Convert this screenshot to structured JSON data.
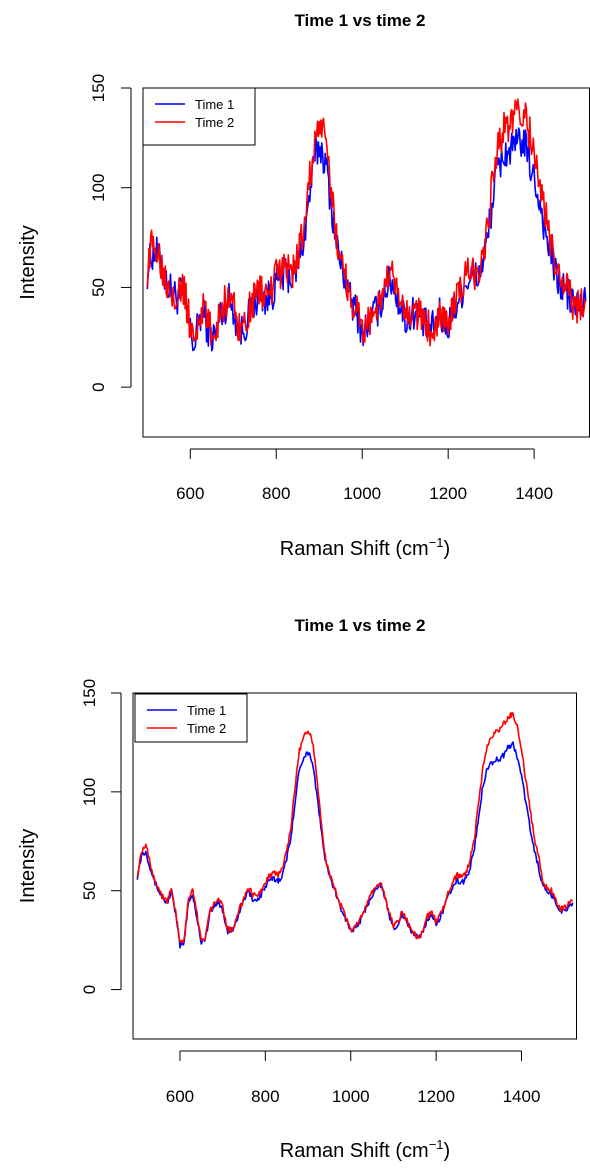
{
  "chart_data": [
    {
      "type": "line",
      "title": "Time 1 vs time 2",
      "xlabel": "Raman Shift (cm",
      "xlabel_sup": "−1",
      "xlabel_tail": ")",
      "ylabel": "Intensity",
      "xlim": [
        490,
        1530
      ],
      "ylim": [
        -25,
        150
      ],
      "xticks": [
        "600",
        "800",
        "1000",
        "1200",
        "1400"
      ],
      "yticks": [
        "0",
        "50",
        "100",
        "150"
      ],
      "legend_position": "top-left",
      "grid": false,
      "series": [
        {
          "name": "Time 1",
          "color": "#0000ff",
          "noise": 9,
          "x": [
            500,
            510,
            520,
            530,
            540,
            550,
            560,
            570,
            580,
            590,
            600,
            610,
            620,
            630,
            640,
            650,
            660,
            670,
            680,
            690,
            700,
            710,
            720,
            730,
            740,
            750,
            760,
            770,
            780,
            790,
            800,
            810,
            820,
            830,
            840,
            850,
            860,
            870,
            880,
            890,
            900,
            910,
            920,
            930,
            940,
            950,
            960,
            970,
            980,
            990,
            1000,
            1010,
            1020,
            1030,
            1040,
            1050,
            1060,
            1070,
            1080,
            1090,
            1100,
            1110,
            1120,
            1130,
            1140,
            1150,
            1160,
            1170,
            1180,
            1190,
            1200,
            1210,
            1220,
            1230,
            1240,
            1250,
            1260,
            1270,
            1280,
            1290,
            1300,
            1310,
            1320,
            1330,
            1340,
            1350,
            1360,
            1370,
            1380,
            1390,
            1400,
            1410,
            1420,
            1430,
            1440,
            1450,
            1460,
            1470,
            1480,
            1490,
            1500,
            1510,
            1520
          ],
          "y": [
            58,
            67,
            68,
            62,
            55,
            50,
            47,
            45,
            48,
            42,
            28,
            20,
            34,
            38,
            30,
            25,
            27,
            36,
            40,
            44,
            40,
            30,
            28,
            32,
            38,
            42,
            48,
            45,
            44,
            47,
            52,
            55,
            57,
            56,
            55,
            62,
            70,
            83,
            100,
            115,
            121,
            116,
            105,
            88,
            72,
            62,
            55,
            45,
            40,
            36,
            28,
            30,
            34,
            38,
            40,
            47,
            52,
            53,
            46,
            40,
            34,
            35,
            38,
            36,
            33,
            30,
            28,
            32,
            36,
            34,
            31,
            37,
            42,
            48,
            52,
            55,
            54,
            56,
            63,
            72,
            88,
            104,
            112,
            117,
            118,
            119,
            121,
            124,
            120,
            112,
            104,
            96,
            85,
            74,
            66,
            56,
            52,
            49,
            46,
            42,
            40,
            41,
            43
          ]
        },
        {
          "name": "Time 2",
          "color": "#ff0000",
          "noise": 9,
          "x": [
            500,
            510,
            520,
            530,
            540,
            550,
            560,
            570,
            580,
            590,
            600,
            610,
            620,
            630,
            640,
            650,
            660,
            670,
            680,
            690,
            700,
            710,
            720,
            730,
            740,
            750,
            760,
            770,
            780,
            790,
            800,
            810,
            820,
            830,
            840,
            850,
            860,
            870,
            880,
            890,
            900,
            910,
            920,
            930,
            940,
            950,
            960,
            970,
            980,
            990,
            1000,
            1010,
            1020,
            1030,
            1040,
            1050,
            1060,
            1070,
            1080,
            1090,
            1100,
            1110,
            1120,
            1130,
            1140,
            1150,
            1160,
            1170,
            1180,
            1190,
            1200,
            1210,
            1220,
            1230,
            1240,
            1250,
            1260,
            1270,
            1280,
            1290,
            1300,
            1310,
            1320,
            1330,
            1340,
            1350,
            1360,
            1370,
            1380,
            1390,
            1400,
            1410,
            1420,
            1430,
            1440,
            1450,
            1460,
            1470,
            1480,
            1490,
            1500,
            1510,
            1520
          ],
          "y": [
            59,
            70,
            72,
            65,
            57,
            52,
            49,
            47,
            50,
            44,
            30,
            22,
            36,
            40,
            32,
            27,
            29,
            38,
            42,
            46,
            42,
            32,
            30,
            34,
            40,
            44,
            50,
            47,
            46,
            49,
            55,
            58,
            60,
            59,
            58,
            66,
            75,
            90,
            108,
            124,
            132,
            126,
            113,
            94,
            76,
            64,
            57,
            47,
            42,
            37,
            29,
            31,
            35,
            39,
            42,
            49,
            54,
            55,
            48,
            41,
            35,
            36,
            39,
            37,
            34,
            31,
            29,
            33,
            37,
            35,
            32,
            38,
            43,
            50,
            55,
            58,
            57,
            59,
            67,
            78,
            96,
            114,
            124,
            130,
            132,
            134,
            136,
            139,
            136,
            127,
            116,
            106,
            94,
            81,
            71,
            60,
            55,
            51,
            47,
            43,
            41,
            42,
            44
          ]
        }
      ]
    },
    {
      "type": "line",
      "title": "Time 1 vs time 2",
      "xlabel": "Raman Shift (cm",
      "xlabel_sup": "−1",
      "xlabel_tail": ")",
      "ylabel": "Intensity",
      "xlim": [
        490,
        1530
      ],
      "ylim": [
        -25,
        150
      ],
      "xticks": [
        "600",
        "800",
        "1000",
        "1200",
        "1400"
      ],
      "yticks": [
        "0",
        "50",
        "100",
        "150"
      ],
      "legend_position": "top-left",
      "grid": false,
      "series": [
        {
          "name": "Time 1",
          "color": "#0000ff",
          "noise": 1.5,
          "x": [
            500,
            510,
            520,
            530,
            540,
            550,
            560,
            570,
            580,
            590,
            600,
            610,
            620,
            630,
            640,
            650,
            660,
            670,
            680,
            690,
            700,
            710,
            720,
            730,
            740,
            750,
            760,
            770,
            780,
            790,
            800,
            810,
            820,
            830,
            840,
            850,
            860,
            870,
            880,
            890,
            900,
            910,
            920,
            930,
            940,
            950,
            960,
            970,
            980,
            990,
            1000,
            1010,
            1020,
            1030,
            1040,
            1050,
            1060,
            1070,
            1080,
            1090,
            1100,
            1110,
            1120,
            1130,
            1140,
            1150,
            1160,
            1170,
            1180,
            1190,
            1200,
            1210,
            1220,
            1230,
            1240,
            1250,
            1260,
            1270,
            1280,
            1290,
            1300,
            1310,
            1320,
            1330,
            1340,
            1350,
            1360,
            1370,
            1380,
            1390,
            1400,
            1410,
            1420,
            1430,
            1440,
            1450,
            1460,
            1470,
            1480,
            1490,
            1500,
            1510,
            1520
          ],
          "y": [
            57,
            68,
            70,
            62,
            55,
            50,
            46,
            44,
            50,
            38,
            22,
            24,
            45,
            48,
            36,
            24,
            26,
            38,
            42,
            45,
            40,
            30,
            29,
            33,
            40,
            45,
            50,
            46,
            45,
            48,
            52,
            55,
            56,
            55,
            58,
            66,
            78,
            95,
            112,
            118,
            120,
            116,
            100,
            82,
            66,
            57,
            52,
            45,
            40,
            35,
            30,
            31,
            34,
            38,
            43,
            48,
            52,
            53,
            46,
            38,
            31,
            33,
            38,
            35,
            30,
            28,
            26,
            30,
            36,
            38,
            33,
            37,
            42,
            48,
            52,
            55,
            54,
            56,
            62,
            72,
            88,
            104,
            112,
            115,
            116,
            117,
            119,
            123,
            124,
            118,
            108,
            95,
            82,
            70,
            62,
            52,
            49,
            48,
            44,
            40,
            40,
            42,
            44
          ]
        },
        {
          "name": "Time 2",
          "color": "#ff0000",
          "noise": 1.5,
          "x": [
            500,
            510,
            520,
            530,
            540,
            550,
            560,
            570,
            580,
            590,
            600,
            610,
            620,
            630,
            640,
            650,
            660,
            670,
            680,
            690,
            700,
            710,
            720,
            730,
            740,
            750,
            760,
            770,
            780,
            790,
            800,
            810,
            820,
            830,
            840,
            850,
            860,
            870,
            880,
            890,
            900,
            910,
            920,
            930,
            940,
            950,
            960,
            970,
            980,
            990,
            1000,
            1010,
            1020,
            1030,
            1040,
            1050,
            1060,
            1070,
            1080,
            1090,
            1100,
            1110,
            1120,
            1130,
            1140,
            1150,
            1160,
            1170,
            1180,
            1190,
            1200,
            1210,
            1220,
            1230,
            1240,
            1250,
            1260,
            1270,
            1280,
            1290,
            1300,
            1310,
            1320,
            1330,
            1340,
            1350,
            1360,
            1370,
            1380,
            1390,
            1400,
            1410,
            1420,
            1430,
            1440,
            1450,
            1460,
            1470,
            1480,
            1490,
            1500,
            1510,
            1520
          ],
          "y": [
            58,
            70,
            74,
            64,
            56,
            51,
            47,
            45,
            51,
            39,
            23,
            25,
            47,
            50,
            38,
            25,
            27,
            40,
            44,
            47,
            42,
            31,
            30,
            34,
            41,
            46,
            52,
            48,
            47,
            50,
            55,
            58,
            59,
            58,
            61,
            70,
            83,
            103,
            121,
            128,
            131,
            126,
            108,
            86,
            68,
            58,
            53,
            46,
            41,
            36,
            30,
            31,
            35,
            39,
            44,
            49,
            53,
            54,
            47,
            39,
            32,
            34,
            39,
            36,
            31,
            28,
            26,
            31,
            37,
            39,
            34,
            38,
            43,
            50,
            55,
            58,
            57,
            59,
            66,
            77,
            95,
            113,
            123,
            128,
            130,
            132,
            135,
            138,
            139,
            133,
            121,
            106,
            91,
            77,
            67,
            55,
            51,
            50,
            45,
            41,
            41,
            43,
            45
          ]
        }
      ]
    }
  ]
}
